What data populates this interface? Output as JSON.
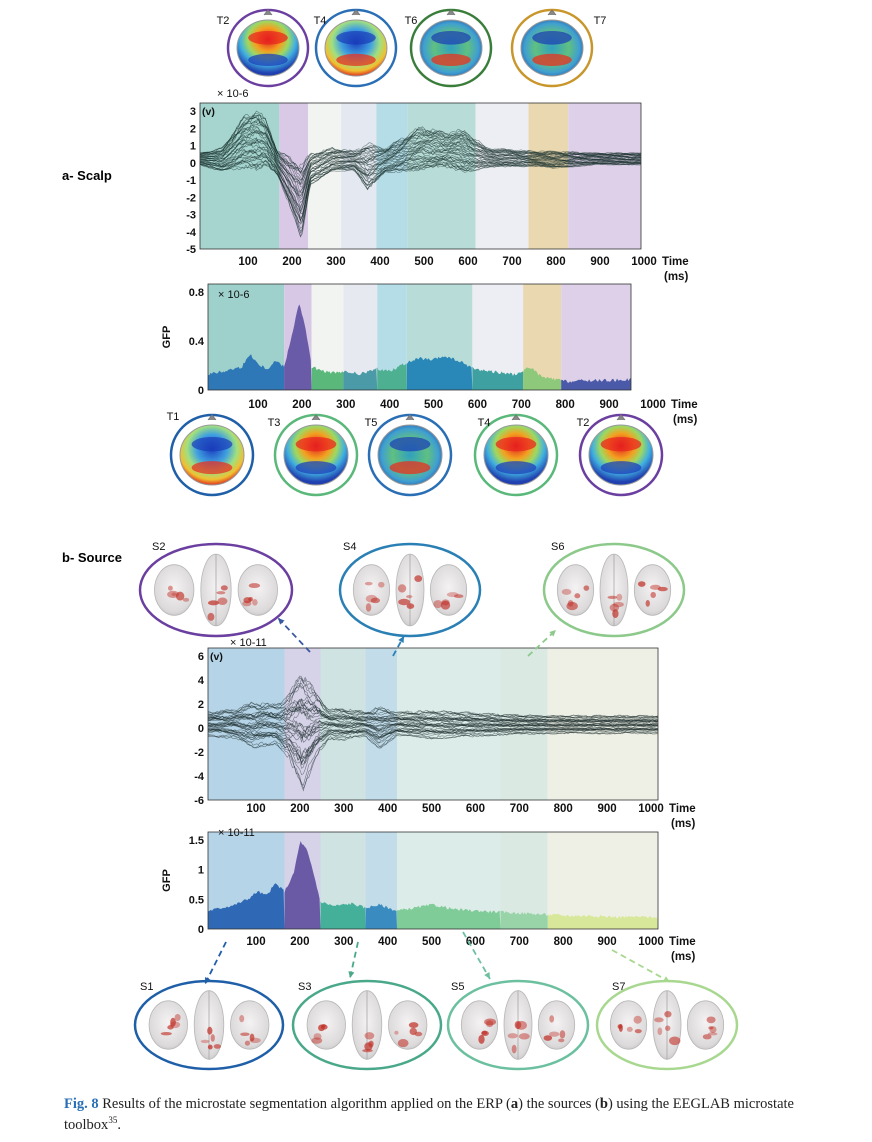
{
  "figure": {
    "panel_a_label": "a- Scalp",
    "panel_b_label": "b- Source",
    "caption": {
      "label": "Fig. 8",
      "text_1": "Results of the microstate segmentation algorithm applied on the ERP (",
      "bold_a": "a",
      "text_2": ") the sources (",
      "bold_b": "b",
      "text_3": ") using the EEGLAB microstate toolbox",
      "ref": "35",
      "text_4": "."
    }
  },
  "panel_a": {
    "topomaps_top": [
      {
        "label": "T2",
        "ring": "#6b3fa0"
      },
      {
        "label": "T4",
        "ring": "#2a6fb5"
      },
      {
        "label": "T6",
        "ring": "#3a7d3a"
      },
      {
        "label": "T7",
        "ring": "#c8962a"
      }
    ],
    "topomaps_bottom": [
      {
        "label": "T1",
        "ring": "#1f5fa8"
      },
      {
        "label": "T3",
        "ring": "#5ab87a"
      },
      {
        "label": "T5",
        "ring": "#2a6fb5"
      },
      {
        "label": "T4",
        "ring": "#5ab87a"
      },
      {
        "label": "T2",
        "ring": "#6b3fa0"
      }
    ]
  },
  "panel_b": {
    "brains_top": [
      {
        "label": "S2",
        "ring": "#6b3fa0"
      },
      {
        "label": "S4",
        "ring": "#2a7fb5"
      },
      {
        "label": "S6",
        "ring": "#8cc98a"
      }
    ],
    "brains_bottom": [
      {
        "label": "S1",
        "ring": "#1f5fa8"
      },
      {
        "label": "S3",
        "ring": "#4aa88a"
      },
      {
        "label": "S5",
        "ring": "#6cc0a0"
      },
      {
        "label": "S7",
        "ring": "#a8d890"
      }
    ]
  },
  "chart_data": [
    {
      "type": "line",
      "id": "scalp-erp",
      "scale_label": "× 10-6",
      "unit_label": "(v)",
      "xlabel": "Time (ms)",
      "x_ticks": [
        "100",
        "200",
        "300",
        "400",
        "500",
        "600",
        "700",
        "800",
        "900",
        "1000"
      ],
      "y_ticks": [
        "3",
        "2",
        "1",
        "0",
        "-1",
        "-2",
        "-3",
        "-4",
        "-5"
      ],
      "xlim": [
        0,
        1000
      ],
      "ylim": [
        -5,
        3
      ],
      "segments": [
        {
          "label": "T1",
          "start": 0,
          "end": 180,
          "color": "#a6d4cf"
        },
        {
          "label": "T2",
          "start": 180,
          "end": 245,
          "color": "#d9c9e6"
        },
        {
          "label": "T3",
          "start": 245,
          "end": 320,
          "color": "#f2f4f2"
        },
        {
          "label": "T4",
          "start": 320,
          "end": 400,
          "color": "#e4e8f0"
        },
        {
          "label": "T5",
          "start": 400,
          "end": 470,
          "color": "#b5dde8"
        },
        {
          "label": "T6",
          "start": 470,
          "end": 625,
          "color": "#b8dcd8"
        },
        {
          "label": "T3",
          "start": 625,
          "end": 745,
          "color": "#eceef3"
        },
        {
          "label": "T7",
          "start": 745,
          "end": 835,
          "color": "#ead8b0"
        },
        {
          "label": "T2",
          "start": 835,
          "end": 1000,
          "color": "#ddd0e8"
        }
      ],
      "series_envelope": {
        "x": [
          0,
          50,
          100,
          130,
          150,
          175,
          200,
          230,
          250,
          300,
          350,
          380,
          420,
          500,
          560,
          600,
          650,
          700,
          760,
          800,
          900,
          1000
        ],
        "max": [
          0.3,
          0.6,
          2.4,
          2.8,
          2.2,
          0.5,
          0.2,
          -0.2,
          0.3,
          0.6,
          0.4,
          0.9,
          0.6,
          1.8,
          1.5,
          1.6,
          0.6,
          0.5,
          0.4,
          0.4,
          0.3,
          0.3
        ],
        "min": [
          -0.4,
          -0.8,
          -0.6,
          -0.7,
          -0.5,
          -1.0,
          -2.5,
          -4.5,
          -1.5,
          -0.8,
          -0.7,
          -1.8,
          -0.9,
          -0.7,
          -0.6,
          -0.8,
          -0.6,
          -0.5,
          -0.5,
          -0.6,
          -0.4,
          -0.4
        ]
      }
    },
    {
      "type": "area",
      "id": "scalp-gfp",
      "scale_label": "× 10-6",
      "ylabel": "GFP",
      "xlabel": "Time (ms)",
      "x_ticks": [
        "100",
        "200",
        "300",
        "400",
        "500",
        "600",
        "700",
        "800",
        "900",
        "1000"
      ],
      "y_ticks": [
        "0.8",
        "0.4",
        "0"
      ],
      "xlim": [
        0,
        1000
      ],
      "ylim": [
        0,
        1.0
      ],
      "segments": [
        {
          "label": "T1",
          "start": 0,
          "end": 180,
          "color": "#9fd1cc",
          "fill": "#2f78b8"
        },
        {
          "label": "T2",
          "start": 180,
          "end": 245,
          "color": "#d7c8e5",
          "fill": "#6a5ba8"
        },
        {
          "label": "T3",
          "start": 245,
          "end": 320,
          "color": "#f2f4f2",
          "fill": "#5ab87a"
        },
        {
          "label": "T4",
          "start": 320,
          "end": 400,
          "color": "#e6eaf0",
          "fill": "#4a9aa8"
        },
        {
          "label": "T5",
          "start": 400,
          "end": 470,
          "color": "#b5dde8",
          "fill": "#4db090"
        },
        {
          "label": "T6",
          "start": 470,
          "end": 625,
          "color": "#b8dcd8",
          "fill": "#2a88b8"
        },
        {
          "label": "T3",
          "start": 625,
          "end": 745,
          "color": "#eceef3",
          "fill": "#3ea0a0"
        },
        {
          "label": "T7",
          "start": 745,
          "end": 835,
          "color": "#ead8b0",
          "fill": "#8ec87a"
        },
        {
          "label": "T2",
          "start": 835,
          "end": 1000,
          "color": "#ddd0e8",
          "fill": "#4a5aa8"
        }
      ],
      "x": [
        0,
        40,
        80,
        100,
        120,
        140,
        160,
        180,
        200,
        215,
        230,
        245,
        270,
        300,
        330,
        360,
        400,
        430,
        460,
        500,
        530,
        560,
        600,
        630,
        660,
        700,
        730,
        760,
        790,
        820,
        850,
        900,
        950,
        1000
      ],
      "values": [
        0.15,
        0.18,
        0.22,
        0.34,
        0.24,
        0.2,
        0.28,
        0.22,
        0.55,
        0.82,
        0.6,
        0.22,
        0.18,
        0.16,
        0.17,
        0.15,
        0.2,
        0.18,
        0.24,
        0.3,
        0.28,
        0.32,
        0.26,
        0.2,
        0.18,
        0.16,
        0.14,
        0.22,
        0.12,
        0.1,
        0.08,
        0.09,
        0.09,
        0.1
      ]
    },
    {
      "type": "line",
      "id": "source-erp",
      "scale_label": "× 10-11",
      "unit_label": "(v)",
      "xlabel": "Time (ms)",
      "x_ticks": [
        "100",
        "200",
        "300",
        "400",
        "500",
        "600",
        "700",
        "800",
        "900",
        "1000"
      ],
      "y_ticks": [
        "6",
        "4",
        "2",
        "0",
        "-2",
        "-4",
        "-6"
      ],
      "xlim": [
        0,
        1000
      ],
      "ylim": [
        -6,
        6
      ],
      "segments": [
        {
          "label": "S1",
          "start": 0,
          "end": 170,
          "color": "#b6d4e8"
        },
        {
          "label": "S2",
          "start": 170,
          "end": 250,
          "color": "#d6d2e8"
        },
        {
          "label": "S3",
          "start": 250,
          "end": 350,
          "color": "#cfe3e3"
        },
        {
          "label": "S4",
          "start": 350,
          "end": 420,
          "color": "#c2dcea"
        },
        {
          "label": "S5",
          "start": 420,
          "end": 650,
          "color": "#dcece8"
        },
        {
          "label": "S6",
          "start": 650,
          "end": 755,
          "color": "#dbe9e3"
        },
        {
          "label": "S7",
          "start": 755,
          "end": 1000,
          "color": "#eef0e6"
        }
      ],
      "series_envelope": {
        "x": [
          0,
          60,
          100,
          150,
          180,
          210,
          240,
          270,
          300,
          350,
          380,
          420,
          500,
          560,
          650,
          750,
          850,
          1000
        ],
        "max": [
          1.0,
          1.2,
          1.8,
          1.6,
          2.4,
          4.6,
          2.5,
          1.2,
          1.3,
          1.0,
          1.4,
          1.0,
          1.1,
          1.0,
          0.8,
          0.7,
          0.7,
          0.7
        ],
        "min": [
          -1.0,
          -1.2,
          -2.0,
          -1.6,
          -2.8,
          -5.8,
          -2.6,
          -1.2,
          -1.4,
          -1.0,
          -2.0,
          -1.0,
          -1.2,
          -1.1,
          -0.9,
          -0.8,
          -0.8,
          -0.8
        ]
      }
    },
    {
      "type": "area",
      "id": "source-gfp",
      "scale_label": "× 10-11",
      "ylabel": "GFP",
      "xlabel": "Time (ms)",
      "x_ticks": [
        "100",
        "200",
        "300",
        "400",
        "500",
        "600",
        "700",
        "800",
        "900",
        "1000"
      ],
      "y_ticks": [
        "1.5",
        "1",
        "0.5",
        "0"
      ],
      "xlim": [
        0,
        1000
      ],
      "ylim": [
        0,
        1.6
      ],
      "segments": [
        {
          "label": "S1",
          "start": 0,
          "end": 170,
          "color": "#b6d4e8",
          "fill": "#2f68b4"
        },
        {
          "label": "S2",
          "start": 170,
          "end": 250,
          "color": "#d6d2e8",
          "fill": "#6a5aa6"
        },
        {
          "label": "S3",
          "start": 250,
          "end": 350,
          "color": "#cfe3e3",
          "fill": "#44b09a"
        },
        {
          "label": "S4",
          "start": 350,
          "end": 420,
          "color": "#c2dcea",
          "fill": "#3a8cc0"
        },
        {
          "label": "S5",
          "start": 420,
          "end": 650,
          "color": "#dcece8",
          "fill": "#80cc98"
        },
        {
          "label": "S6",
          "start": 650,
          "end": 755,
          "color": "#dbe9e3",
          "fill": "#98d4a8"
        },
        {
          "label": "S7",
          "start": 755,
          "end": 1000,
          "color": "#eef0e6",
          "fill": "#d8e89a"
        }
      ],
      "x": [
        0,
        30,
        60,
        90,
        110,
        130,
        150,
        170,
        190,
        205,
        220,
        235,
        250,
        280,
        320,
        350,
        380,
        420,
        460,
        500,
        550,
        600,
        650,
        700,
        750,
        800,
        850,
        900,
        950,
        1000
      ],
      "values": [
        0.3,
        0.35,
        0.4,
        0.5,
        0.62,
        0.55,
        0.75,
        0.62,
        0.9,
        1.45,
        1.3,
        0.9,
        0.45,
        0.38,
        0.42,
        0.35,
        0.4,
        0.3,
        0.35,
        0.4,
        0.32,
        0.3,
        0.28,
        0.26,
        0.24,
        0.22,
        0.22,
        0.2,
        0.2,
        0.2
      ]
    }
  ]
}
